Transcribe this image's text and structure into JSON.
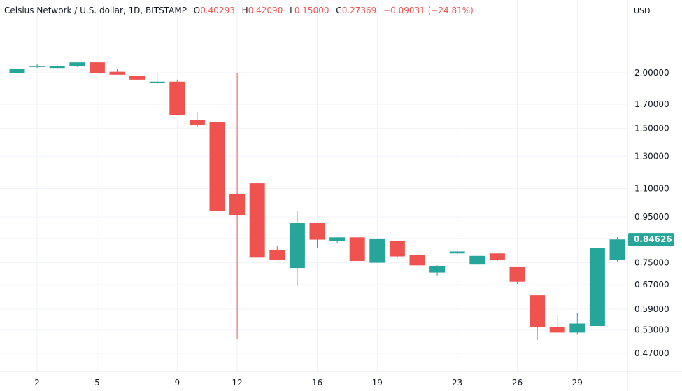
{
  "legend": {
    "symbol": "Celsius Network / U.S. dollar, 1D, BITSTAMP",
    "o_label": "O",
    "o_value": "0.40293",
    "h_label": "H",
    "h_value": "0.42090",
    "l_label": "L",
    "l_value": "0.15000",
    "c_label": "C",
    "c_value": "0.27369",
    "change": "−0.09031 (−24.81%)"
  },
  "price_axis": {
    "currency": "USD",
    "last_price_label": "0.84626"
  },
  "colors": {
    "up": "#26a69a",
    "down": "#ef5350",
    "grid": "#f0f3fa",
    "axis_line": "#e0e3eb",
    "text": "#131722"
  },
  "chart_data": {
    "type": "candlestick",
    "scale": "log",
    "ylim": [
      0.43,
      2.25
    ],
    "y_ticks": [
      "0.47000",
      "0.53000",
      "0.59000",
      "0.67000",
      "0.75000",
      "0.84626",
      "0.95000",
      "1.10000",
      "1.30000",
      "1.50000",
      "1.70000",
      "2.00000"
    ],
    "x_tick_labels": [
      {
        "day": 2,
        "label": "2"
      },
      {
        "day": 5,
        "label": "5"
      },
      {
        "day": 9,
        "label": "9"
      },
      {
        "day": 12,
        "label": "12"
      },
      {
        "day": 16,
        "label": "16"
      },
      {
        "day": 19,
        "label": "19"
      },
      {
        "day": 23,
        "label": "23"
      },
      {
        "day": 26,
        "label": "26"
      },
      {
        "day": 29,
        "label": "29"
      }
    ],
    "candles": [
      {
        "day": 1,
        "open": 2.0,
        "high": 2.04,
        "low": 2.0,
        "close": 2.04
      },
      {
        "day": 2,
        "open": 2.06,
        "high": 2.09,
        "low": 2.05,
        "close": 2.07
      },
      {
        "day": 3,
        "open": 2.05,
        "high": 2.1,
        "low": 2.04,
        "close": 2.07
      },
      {
        "day": 4,
        "open": 2.07,
        "high": 2.11,
        "low": 2.06,
        "close": 2.11
      },
      {
        "day": 5,
        "open": 2.11,
        "high": 2.11,
        "low": 2.0,
        "close": 2.0
      },
      {
        "day": 6,
        "open": 2.01,
        "high": 2.04,
        "low": 1.98,
        "close": 1.98
      },
      {
        "day": 7,
        "open": 1.97,
        "high": 1.97,
        "low": 1.93,
        "close": 1.93
      },
      {
        "day": 8,
        "open": 1.9,
        "high": 2.0,
        "low": 1.88,
        "close": 1.91
      },
      {
        "day": 9,
        "open": 1.91,
        "high": 1.93,
        "low": 1.61,
        "close": 1.61
      },
      {
        "day": 10,
        "open": 1.57,
        "high": 1.63,
        "low": 1.51,
        "close": 1.53
      },
      {
        "day": 11,
        "open": 1.55,
        "high": 1.55,
        "low": 0.98,
        "close": 0.98
      },
      {
        "day": 12,
        "open": 1.07,
        "high": 2.0,
        "low": 0.505,
        "close": 0.96
      },
      {
        "day": 13,
        "open": 1.13,
        "high": 1.13,
        "low": 0.77,
        "close": 0.77
      },
      {
        "day": 14,
        "open": 0.8,
        "high": 0.82,
        "low": 0.76,
        "close": 0.76
      },
      {
        "day": 15,
        "open": 0.73,
        "high": 0.98,
        "low": 0.665,
        "close": 0.92
      },
      {
        "day": 16,
        "open": 0.92,
        "high": 0.92,
        "low": 0.81,
        "close": 0.845
      },
      {
        "day": 17,
        "open": 0.84,
        "high": 0.855,
        "low": 0.83,
        "close": 0.855
      },
      {
        "day": 18,
        "open": 0.855,
        "high": 0.855,
        "low": 0.757,
        "close": 0.757
      },
      {
        "day": 19,
        "open": 0.75,
        "high": 0.85,
        "low": 0.75,
        "close": 0.85
      },
      {
        "day": 20,
        "open": 0.838,
        "high": 0.838,
        "low": 0.767,
        "close": 0.775
      },
      {
        "day": 21,
        "open": 0.782,
        "high": 0.782,
        "low": 0.74,
        "close": 0.74
      },
      {
        "day": 22,
        "open": 0.713,
        "high": 0.74,
        "low": 0.7,
        "close": 0.737
      },
      {
        "day": 23,
        "open": 0.787,
        "high": 0.805,
        "low": 0.782,
        "close": 0.795
      },
      {
        "day": 24,
        "open": 0.743,
        "high": 0.777,
        "low": 0.743,
        "close": 0.777
      },
      {
        "day": 25,
        "open": 0.787,
        "high": 0.787,
        "low": 0.757,
        "close": 0.762
      },
      {
        "day": 26,
        "open": 0.733,
        "high": 0.733,
        "low": 0.672,
        "close": 0.68
      },
      {
        "day": 27,
        "open": 0.634,
        "high": 0.634,
        "low": 0.503,
        "close": 0.538
      },
      {
        "day": 28,
        "open": 0.538,
        "high": 0.572,
        "low": 0.523,
        "close": 0.523
      },
      {
        "day": 29,
        "open": 0.523,
        "high": 0.578,
        "low": 0.517,
        "close": 0.548
      },
      {
        "day": 30,
        "open": 0.541,
        "high": 0.81,
        "low": 0.541,
        "close": 0.81
      },
      {
        "day": 31,
        "open": 0.76,
        "high": 0.855,
        "low": 0.755,
        "close": 0.846
      }
    ]
  }
}
